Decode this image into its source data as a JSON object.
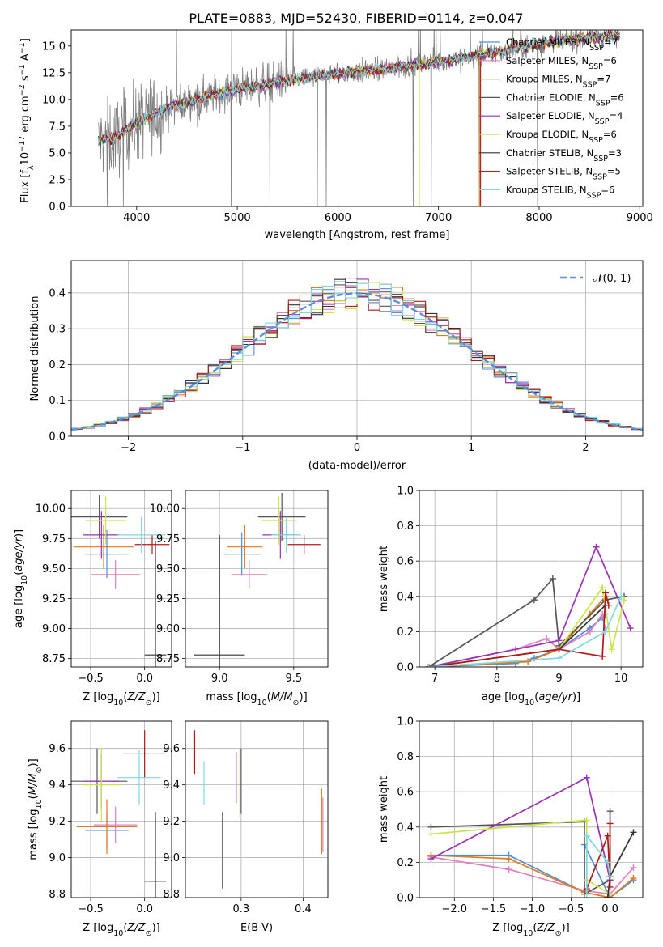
{
  "figure_title": "PLATE=0883, MJD=52430, FIBERID=0114, z=0.047",
  "colors": {
    "chabrier_miles": "#4c8fdc",
    "salpeter_miles": "#e07fbf",
    "kroupa_miles": "#e07b1f",
    "chabrier_elodie": "#555555",
    "salpeter_elodie": "#9b30b5",
    "kroupa_elodie": "#c8e64a",
    "chabrier_stelib": "#333333",
    "salpeter_stelib": "#b01a1a",
    "kroupa_stelib": "#7fd8e0",
    "grid": "#b0b0b0",
    "normal_curve": "#5b8fd6"
  },
  "chart_data": [
    {
      "type": "line",
      "name": "spectrum",
      "title": "PLATE=0883, MJD=52430, FIBERID=0114, z=0.047",
      "xlabel": "wavelength [Angstrom, rest frame]",
      "ylabel": "Flux [f_λ10^-17 erg cm^-2 s^-1 A^-1]",
      "xlim": [
        3350,
        9030
      ],
      "ylim": [
        0,
        16.5
      ],
      "xticks": [
        "4000",
        "5000",
        "6000",
        "7000",
        "8000",
        "9000"
      ],
      "yticks": [
        "0.0",
        "2.5",
        "5.0",
        "7.5",
        "10.0",
        "12.5",
        "15.0"
      ],
      "grid": false,
      "legend_position": "top-right",
      "continuum_x": [
        3620,
        3800,
        4000,
        4300,
        4600,
        5000,
        5500,
        6000,
        6500,
        7000,
        7500,
        8000,
        8500,
        8800
      ],
      "continuum_y": [
        6.0,
        6.5,
        7.8,
        9.2,
        10.0,
        11.0,
        11.8,
        12.4,
        12.9,
        13.5,
        14.3,
        15.2,
        15.8,
        16.0
      ],
      "legend": [
        "Chabrier MILES, N_SSP=7",
        "Salpeter MILES, N_SSP=6",
        "Kroupa MILES, N_SSP=7",
        "Chabrier ELODIE, N_SSP=6",
        "Salpeter ELODIE, N_SSP=4",
        "Kroupa ELODIE, N_SSP=6",
        "Chabrier STELIB, N_SSP=3",
        "Salpeter STELIB, N_SSP=5",
        "Kroupa STELIB, N_SSP=6"
      ]
    },
    {
      "type": "bar",
      "name": "residual-histogram",
      "xlabel": "(data-model)/error",
      "ylabel": "Normed distribution",
      "xlim": [
        -2.5,
        2.5
      ],
      "ylim": [
        0,
        0.49
      ],
      "xticks": [
        "−2",
        "−1",
        "0",
        "1",
        "2"
      ],
      "yticks": [
        "0.0",
        "0.1",
        "0.2",
        "0.3",
        "0.4"
      ],
      "grid": true,
      "legend_position": "top-right",
      "legend": [
        "𝒩(0, 1)"
      ],
      "bin_width": 0.1
    },
    {
      "type": "scatter",
      "name": "age-vs-metallicity",
      "xlabel": "Z [log10(Z/Z_sun)]",
      "ylabel": "age  [log10(age/yr)]",
      "xlim": [
        -0.68,
        0.25
      ],
      "ylim": [
        8.68,
        10.15
      ],
      "xticks": [
        "−0.5",
        "0.0"
      ],
      "yticks": [
        "8.75",
        "9.00",
        "9.25",
        "9.50",
        "9.75",
        "10.00"
      ],
      "points": [
        {
          "model": "chabrier_miles",
          "x": -0.35,
          "xerr": 0.2,
          "y": 9.62,
          "yerr": 0.2
        },
        {
          "model": "salpeter_miles",
          "x": -0.27,
          "xerr": 0.23,
          "y": 9.45,
          "yerr": 0.12
        },
        {
          "model": "kroupa_miles",
          "x": -0.38,
          "xerr": 0.28,
          "y": 9.68,
          "yerr": 0.18
        },
        {
          "model": "chabrier_elodie",
          "x": -0.42,
          "xerr": 0.26,
          "y": 9.93,
          "yerr": 0.18
        },
        {
          "model": "salpeter_elodie",
          "x": -0.4,
          "xerr": 0.17,
          "y": 9.78,
          "yerr": 0.2
        },
        {
          "model": "kroupa_elodie",
          "x": -0.36,
          "xerr": 0.19,
          "y": 9.9,
          "yerr": 0.2
        },
        {
          "model": "chabrier_stelib",
          "x": 0.1,
          "xerr": 0.1,
          "y": 8.78,
          "yerr": 0.95
        },
        {
          "model": "salpeter_stelib",
          "x": 0.07,
          "xerr": 0.16,
          "y": 9.7,
          "yerr": 0.08
        },
        {
          "model": "kroupa_stelib",
          "x": -0.03,
          "xerr": 0.22,
          "y": 9.78,
          "yerr": 0.15
        }
      ]
    },
    {
      "type": "scatter",
      "name": "age-vs-mass",
      "xlabel": "mass [log10(M/M_sun)]",
      "ylabel": "",
      "xlim": [
        8.77,
        9.73
      ],
      "ylim": [
        8.68,
        10.15
      ],
      "xticks": [
        "9.0",
        "9.5"
      ],
      "yticks": [
        "8.75",
        "9.00",
        "9.25",
        "9.50",
        "9.75",
        "10.00"
      ],
      "points": [
        {
          "model": "chabrier_miles",
          "x": 9.15,
          "xerr": 0.12,
          "y": 9.62,
          "yerr": 0.18
        },
        {
          "model": "salpeter_miles",
          "x": 9.2,
          "xerr": 0.12,
          "y": 9.45,
          "yerr": 0.12
        },
        {
          "model": "kroupa_miles",
          "x": 9.17,
          "xerr": 0.12,
          "y": 9.68,
          "yerr": 0.18
        },
        {
          "model": "chabrier_elodie",
          "x": 9.42,
          "xerr": 0.16,
          "y": 9.93,
          "yerr": 0.2
        },
        {
          "model": "salpeter_elodie",
          "x": 9.41,
          "xerr": 0.12,
          "y": 9.78,
          "yerr": 0.2
        },
        {
          "model": "kroupa_elodie",
          "x": 9.4,
          "xerr": 0.12,
          "y": 9.9,
          "yerr": 0.2
        },
        {
          "model": "chabrier_stelib",
          "x": 9.0,
          "xerr": 0.17,
          "y": 8.78,
          "yerr": 1.0
        },
        {
          "model": "salpeter_stelib",
          "x": 9.57,
          "xerr": 0.11,
          "y": 9.7,
          "yerr": 0.08
        },
        {
          "model": "kroupa_stelib",
          "x": 9.45,
          "xerr": 0.1,
          "y": 9.78,
          "yerr": 0.15
        }
      ]
    },
    {
      "type": "line",
      "name": "mass-weight-vs-age",
      "xlabel": "age  [log10(age/yr)]",
      "ylabel": "mass weight",
      "xlim": [
        6.75,
        10.35
      ],
      "ylim": [
        0,
        1.0
      ],
      "xticks": [
        "7",
        "8",
        "9",
        "10"
      ],
      "yticks": [
        "0.0",
        "0.2",
        "0.4",
        "0.6",
        "0.8",
        "1.0"
      ],
      "grid": true,
      "series": [
        {
          "model": "chabrier_miles",
          "x": [
            6.9,
            8.3,
            8.6,
            9.0,
            9.5,
            9.7,
            9.75
          ],
          "y": [
            0.0,
            0.02,
            0.05,
            0.1,
            0.22,
            0.28,
            0.3
          ]
        },
        {
          "model": "salpeter_miles",
          "x": [
            6.9,
            8.3,
            8.8,
            9.0,
            9.5,
            9.7,
            9.75
          ],
          "y": [
            0.0,
            0.1,
            0.16,
            0.1,
            0.2,
            0.3,
            0.2
          ]
        },
        {
          "model": "kroupa_miles",
          "x": [
            6.9,
            8.5,
            9.0,
            9.5,
            9.75
          ],
          "y": [
            0.0,
            0.03,
            0.1,
            0.3,
            0.4
          ]
        },
        {
          "model": "chabrier_elodie",
          "x": [
            6.9,
            8.6,
            8.9,
            9.0,
            9.75,
            10.05
          ],
          "y": [
            0.0,
            0.38,
            0.5,
            0.12,
            0.38,
            0.4
          ]
        },
        {
          "model": "salpeter_elodie",
          "x": [
            6.9,
            9.0,
            9.6,
            10.15
          ],
          "y": [
            0.0,
            0.15,
            0.68,
            0.22
          ]
        },
        {
          "model": "kroupa_elodie",
          "x": [
            6.9,
            9.0,
            9.7,
            9.85,
            10.05
          ],
          "y": [
            0.0,
            0.1,
            0.45,
            0.1,
            0.38
          ]
        },
        {
          "model": "chabrier_stelib",
          "x": [
            6.9,
            9.0,
            9.75
          ],
          "y": [
            0.0,
            0.1,
            0.35
          ]
        },
        {
          "model": "salpeter_stelib",
          "x": [
            6.9,
            9.0,
            9.7,
            9.75,
            9.8
          ],
          "y": [
            0.0,
            0.1,
            0.06,
            0.42,
            0.35
          ]
        },
        {
          "model": "kroupa_stelib",
          "x": [
            6.9,
            9.0,
            9.75,
            10.0
          ],
          "y": [
            0.0,
            0.05,
            0.2,
            0.4
          ]
        }
      ]
    },
    {
      "type": "scatter",
      "name": "mass-vs-metallicity",
      "xlabel": "Z [log10(Z/Z_sun)]",
      "ylabel": "mass [log10(M/M_sun)]",
      "xlim": [
        -0.68,
        0.25
      ],
      "ylim": [
        8.78,
        9.75
      ],
      "xticks": [
        "−0.5",
        "0.0"
      ],
      "yticks": [
        "8.8",
        "9.0",
        "9.2",
        "9.4",
        "9.6"
      ],
      "points": [
        {
          "model": "chabrier_miles",
          "x": -0.35,
          "xerr": 0.2,
          "y": 9.15,
          "yerr": 0.1
        },
        {
          "model": "salpeter_miles",
          "x": -0.27,
          "xerr": 0.2,
          "y": 9.18,
          "yerr": 0.1
        },
        {
          "model": "kroupa_miles",
          "x": -0.35,
          "xerr": 0.28,
          "y": 9.17,
          "yerr": 0.15
        },
        {
          "model": "chabrier_elodie",
          "x": -0.44,
          "xerr": 0.28,
          "y": 9.42,
          "yerr": 0.18
        },
        {
          "model": "salpeter_elodie",
          "x": -0.4,
          "xerr": 0.17,
          "y": 9.42,
          "yerr": 0.15
        },
        {
          "model": "kroupa_elodie",
          "x": -0.4,
          "xerr": 0.18,
          "y": 9.4,
          "yerr": 0.2
        },
        {
          "model": "chabrier_stelib",
          "x": 0.1,
          "xerr": 0.1,
          "y": 8.87,
          "yerr": 0.38
        },
        {
          "model": "salpeter_stelib",
          "x": 0.0,
          "xerr": 0.2,
          "y": 9.57,
          "yerr": 0.13
        },
        {
          "model": "kroupa_stelib",
          "x": -0.05,
          "xerr": 0.2,
          "y": 9.44,
          "yerr": 0.15
        }
      ]
    },
    {
      "type": "scatter",
      "name": "mass-vs-ebv",
      "xlabel": "E(B-V)",
      "ylabel": "",
      "xlim": [
        0.21,
        0.44
      ],
      "ylim": [
        8.78,
        9.75
      ],
      "xticks": [
        "0.3",
        "0.4"
      ],
      "yticks": [
        "8.8",
        "9.0",
        "9.2",
        "9.4",
        "9.6"
      ],
      "points": [
        {
          "model": "salpeter_stelib",
          "x": 0.225,
          "y": 9.58,
          "yerr": 0.12
        },
        {
          "model": "kroupa_stelib",
          "x": 0.24,
          "y": 9.41,
          "yerr": 0.12
        },
        {
          "model": "chabrier_stelib",
          "x": 0.27,
          "y": 9.04,
          "yerr": 0.21
        },
        {
          "model": "salpeter_elodie",
          "x": 0.292,
          "y": 9.44,
          "yerr": 0.14
        },
        {
          "model": "kroupa_elodie",
          "x": 0.298,
          "y": 9.41,
          "yerr": 0.19
        },
        {
          "model": "chabrier_elodie",
          "x": 0.3,
          "y": 9.42,
          "yerr": 0.18
        },
        {
          "model": "kroupa_miles",
          "x": 0.43,
          "y": 9.2,
          "yerr": 0.18
        },
        {
          "model": "salpeter_miles",
          "x": 0.432,
          "y": 9.18,
          "yerr": 0.15
        }
      ]
    },
    {
      "type": "line",
      "name": "mass-weight-vs-metallicity",
      "xlabel": "Z [log10(Z/Z_sun)]",
      "ylabel": "mass weight",
      "xlim": [
        -2.45,
        0.42
      ],
      "ylim": [
        0,
        1.0
      ],
      "xticks": [
        "−2.0",
        "−1.5",
        "−1.0",
        "−0.5",
        "0.0"
      ],
      "yticks": [
        "0.0",
        "0.2",
        "0.4",
        "0.6",
        "0.8",
        "1.0"
      ],
      "grid": true,
      "series": [
        {
          "model": "chabrier_miles",
          "x": [
            -2.3,
            -1.3,
            -0.33,
            -0.33,
            0.0,
            0.3
          ],
          "y": [
            0.24,
            0.24,
            0.03,
            0.3,
            0.0,
            0.1
          ]
        },
        {
          "model": "salpeter_miles",
          "x": [
            -2.3,
            -1.3,
            -0.33,
            0.0,
            0.3
          ],
          "y": [
            0.23,
            0.16,
            0.04,
            0.02,
            0.17
          ]
        },
        {
          "model": "kroupa_miles",
          "x": [
            -2.3,
            -1.3,
            -0.33,
            0.0,
            0.3
          ],
          "y": [
            0.24,
            0.22,
            0.03,
            0.0,
            0.11
          ]
        },
        {
          "model": "chabrier_elodie",
          "x": [
            -2.3,
            -0.33,
            -0.33,
            0.0,
            0.0
          ],
          "y": [
            0.4,
            0.43,
            0.02,
            0.1,
            0.49
          ]
        },
        {
          "model": "salpeter_elodie",
          "x": [
            -2.3,
            -0.3,
            0.0
          ],
          "y": [
            0.22,
            0.68,
            0.1
          ]
        },
        {
          "model": "kroupa_elodie",
          "x": [
            -2.3,
            -0.3,
            -0.3,
            0.0
          ],
          "y": [
            0.36,
            0.44,
            0.1,
            0.02
          ]
        },
        {
          "model": "chabrier_stelib",
          "x": [
            -0.03,
            0.0,
            0.3
          ],
          "y": [
            0.0,
            0.12,
            0.37
          ]
        },
        {
          "model": "salpeter_stelib",
          "x": [
            -0.3,
            -0.03,
            0.0,
            0.0
          ],
          "y": [
            0.05,
            0.35,
            0.06,
            0.42
          ]
        },
        {
          "model": "kroupa_stelib",
          "x": [
            -0.3,
            -0.3,
            -0.03,
            0.0
          ],
          "y": [
            0.02,
            0.35,
            0.2,
            0.12
          ]
        }
      ]
    }
  ]
}
